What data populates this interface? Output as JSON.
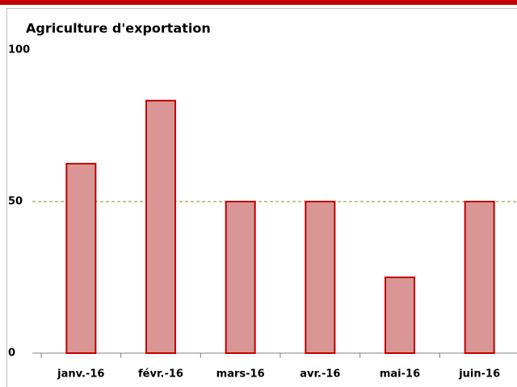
{
  "chart_data": {
    "type": "bar",
    "title": "Agriculture d'exportation",
    "categories": [
      "janv.-16",
      "févr.-16",
      "mars-16",
      "avr.-16",
      "mai-16",
      "juin-16"
    ],
    "values": [
      62.5,
      83.3,
      50,
      50,
      25,
      50
    ],
    "color": "#da9694",
    "edge_color": "#c00000",
    "ylim": [
      0,
      100
    ],
    "yticks": [
      0,
      50,
      100
    ],
    "reference_line": 50,
    "reference_color": "#8a8a2a"
  }
}
